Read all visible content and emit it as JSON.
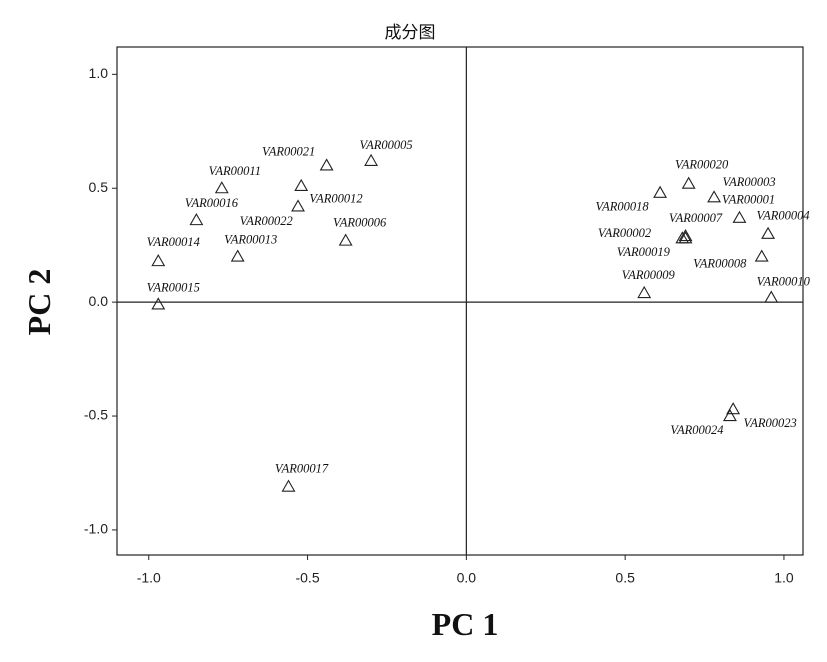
{
  "chart_data": {
    "type": "scatter",
    "title": "成分图",
    "x_label": "PC 1",
    "y_label": "PC 2",
    "xlim": [
      -1.1,
      1.06
    ],
    "ylim": [
      -1.11,
      1.12
    ],
    "xticks": [
      {
        "value": -1,
        "label": "-1.0"
      },
      {
        "value": -0.5,
        "label": "-0.5"
      },
      {
        "value": 0,
        "label": "0.0"
      },
      {
        "value": 0.5,
        "label": "0.5"
      },
      {
        "value": 1,
        "label": "1.0"
      }
    ],
    "yticks": [
      {
        "value": -1,
        "label": "-1.0"
      },
      {
        "value": -0.5,
        "label": "-0.5"
      },
      {
        "value": 0,
        "label": "0.0"
      },
      {
        "value": 0.5,
        "label": "0.5"
      },
      {
        "value": 1,
        "label": "1.0"
      }
    ],
    "color": "#222222",
    "labels": [
      "VAR00001",
      "VAR00002",
      "VAR00003",
      "VAR00004",
      "VAR00005",
      "VAR00006",
      "VAR00007",
      "VAR00008",
      "VAR00009",
      "VAR00010",
      "VAR00011",
      "VAR00012",
      "VAR00013",
      "VAR00014",
      "VAR00015",
      "VAR00016",
      "VAR00017",
      "VAR00018",
      "VAR00019",
      "VAR00020",
      "VAR00021",
      "VAR00022",
      "VAR00023",
      "VAR00024"
    ],
    "x": [
      0.86,
      0.69,
      0.78,
      0.95,
      -0.3,
      -0.38,
      0.69,
      0.93,
      0.56,
      0.96,
      -0.77,
      -0.53,
      -0.72,
      -0.97,
      -0.97,
      -0.85,
      -0.56,
      0.61,
      0.68,
      0.7,
      -0.44,
      -0.52,
      0.84,
      0.83
    ],
    "values": [
      0.37,
      0.28,
      0.46,
      0.3,
      0.62,
      0.27,
      0.29,
      0.2,
      0.04,
      0.02,
      0.5,
      0.42,
      0.2,
      0.18,
      -0.01,
      0.36,
      -0.81,
      0.48,
      0.28,
      0.52,
      0.6,
      0.51,
      -0.47,
      -0.5
    ]
  }
}
